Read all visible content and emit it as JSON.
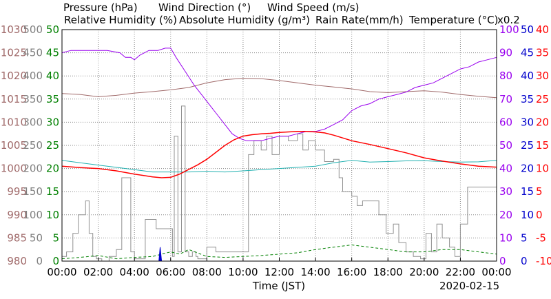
{
  "chart_data": {
    "type": "line",
    "date_label": "2020-02-15",
    "xlabel": "Time (JST)",
    "x_ticks": [
      "00:00",
      "02:00",
      "04:00",
      "06:00",
      "08:00",
      "10:00",
      "12:00",
      "14:00",
      "16:00",
      "18:00",
      "20:00",
      "22:00",
      "00:00"
    ],
    "x_range_hours": [
      0,
      24
    ],
    "grid": true,
    "legend": [
      {
        "text": "Pressure (hPa)",
        "color": "#a06a6a"
      },
      {
        "text": "Wind Direction (°)",
        "color": "#909090"
      },
      {
        "text": "Wind Speed (m/s)",
        "color": "#008000"
      },
      {
        "text": "Relative Humidity (%)",
        "color": "#9900ee"
      },
      {
        "text": "Absolute Humidity (g/m³)",
        "color": "#20b0b0"
      },
      {
        "text": "Rain Rate(mm/h)",
        "color": "#0000cc"
      },
      {
        "text": "Temperature (°C)",
        "color": "#ff0000"
      },
      {
        "text": "x0.2",
        "color": "#20b0b0"
      }
    ],
    "axes": {
      "pressure": {
        "color": "#a06a6a",
        "ticks": [
          "980",
          "985",
          "990",
          "995",
          "1000",
          "1005",
          "1010",
          "1015",
          "1020",
          "1025",
          "1030"
        ],
        "range": [
          980,
          1030
        ]
      },
      "wind_speed": {
        "color": "#008000",
        "ticks": [
          "0",
          "5",
          "10",
          "15",
          "20",
          "25",
          "30",
          "35",
          "40",
          "45",
          "50"
        ],
        "range": [
          0,
          50
        ]
      },
      "wind_direction": {
        "color": "#808080",
        "ticks": [
          "0",
          "50",
          "100",
          "150",
          "200",
          "250",
          "300",
          "350",
          "400",
          "450",
          "500"
        ],
        "range": [
          0,
          500
        ]
      },
      "humidity": {
        "color": "#9900ee",
        "ticks": [
          "0",
          "10",
          "20",
          "30",
          "40",
          "50",
          "60",
          "70",
          "80",
          "90",
          "100"
        ],
        "range": [
          0,
          100
        ]
      },
      "rain": {
        "color": "#0000cc",
        "ticks": [
          "0",
          "5",
          "10",
          "15",
          "20",
          "25",
          "30",
          "35",
          "40",
          "45",
          "50"
        ],
        "range": [
          0,
          50
        ]
      },
      "temperature": {
        "color": "#ff0000",
        "ticks": [
          "-10",
          "-5",
          "0",
          "5",
          "10",
          "15",
          "20",
          "25",
          "30",
          "35",
          "40"
        ],
        "range": [
          -10,
          40
        ]
      }
    },
    "series": [
      {
        "name": "Pressure (hPa)",
        "axis": "pressure",
        "color": "#a06a6a",
        "x": [
          0,
          1,
          2,
          3,
          4,
          5,
          6,
          7,
          8,
          9,
          10,
          11,
          12,
          13,
          14,
          15,
          16,
          17,
          18,
          19,
          20,
          21,
          22,
          23,
          24
        ],
        "values": [
          1016.2,
          1016.0,
          1015.5,
          1015.8,
          1016.3,
          1016.6,
          1017.0,
          1017.5,
          1018.5,
          1019.2,
          1019.5,
          1019.4,
          1019.0,
          1018.5,
          1018.0,
          1017.6,
          1017.2,
          1016.6,
          1016.4,
          1016.6,
          1016.8,
          1016.5,
          1016.0,
          1015.6,
          1015.3
        ]
      },
      {
        "name": "Wind Direction (°)",
        "axis": "wind_direction",
        "color": "#909090",
        "x": [
          0,
          0.25,
          0.6,
          0.9,
          1.3,
          1.5,
          1.7,
          1.9,
          2.2,
          2.6,
          3.0,
          3.3,
          3.6,
          3.8,
          4.0,
          4.3,
          4.6,
          4.9,
          5.2,
          5.5,
          5.8,
          6.0,
          6.1,
          6.2,
          6.4,
          6.5,
          6.6,
          6.8,
          7.0,
          7.2,
          7.4,
          7.5,
          7.6,
          8.0,
          8.5,
          9.0,
          9.6,
          10.0,
          10.3,
          10.6,
          11.0,
          11.3,
          11.6,
          12.0,
          12.5,
          13.0,
          13.3,
          13.6,
          14.0,
          14.5,
          15.0,
          15.3,
          15.5,
          15.8,
          16.0,
          16.3,
          16.6,
          17.0,
          17.5,
          17.9,
          18.3,
          18.6,
          19.0,
          19.4,
          19.8,
          20.1,
          20.4,
          20.7,
          21.0,
          21.4,
          21.7,
          22.0,
          22.4,
          22.8,
          23.2,
          23.6,
          24.0
        ],
        "values": [
          10,
          20,
          60,
          100,
          130,
          60,
          10,
          5,
          0,
          10,
          25,
          180,
          180,
          20,
          5,
          5,
          90,
          90,
          70,
          70,
          70,
          70,
          10,
          270,
          20,
          20,
          335,
          20,
          10,
          20,
          10,
          5,
          5,
          30,
          20,
          20,
          20,
          20,
          230,
          260,
          240,
          270,
          230,
          270,
          260,
          275,
          240,
          260,
          240,
          215,
          220,
          180,
          150,
          150,
          140,
          120,
          130,
          130,
          100,
          60,
          80,
          40,
          20,
          10,
          5,
          60,
          20,
          80,
          50,
          30,
          10,
          80,
          160,
          160,
          160,
          160,
          165
        ]
      },
      {
        "name": "Wind Speed (m/s)",
        "axis": "wind_speed",
        "color": "#008000",
        "x": [
          0,
          1,
          2,
          3,
          4,
          5,
          5.5,
          6,
          6.5,
          7,
          8,
          9,
          10,
          11,
          12,
          13,
          14,
          15,
          16,
          17,
          18,
          19,
          20,
          21,
          22,
          23,
          24
        ],
        "values": [
          0.5,
          0.8,
          1.2,
          0.5,
          0.8,
          1.0,
          1.5,
          2.0,
          1.5,
          2.5,
          1.0,
          0.8,
          1.0,
          1.2,
          1.5,
          1.8,
          2.5,
          3.0,
          3.5,
          3.0,
          2.5,
          2.0,
          2.0,
          2.5,
          2.5,
          2.0,
          1.5
        ]
      },
      {
        "name": "Relative Humidity (%)",
        "axis": "humidity",
        "color": "#9900ee",
        "x": [
          0,
          0.5,
          1.5,
          2.5,
          3.2,
          3.5,
          3.8,
          4.0,
          4.3,
          4.8,
          5.3,
          5.7,
          6.0,
          6.3,
          6.8,
          7.3,
          7.8,
          8.2,
          8.5,
          9.0,
          9.4,
          9.8,
          10.2,
          10.5,
          11.0,
          11.5,
          12.0,
          12.5,
          13.0,
          13.5,
          14.0,
          14.5,
          15.0,
          15.5,
          16.0,
          16.5,
          17.0,
          17.5,
          18.0,
          18.5,
          19.0,
          19.5,
          20.0,
          20.5,
          21.0,
          21.5,
          22.0,
          22.5,
          23.0,
          23.5,
          24.0
        ],
        "values": [
          90,
          91,
          91,
          91,
          90,
          88,
          88,
          87,
          89,
          91,
          91,
          92,
          92,
          88,
          82,
          76,
          71,
          67,
          64,
          59,
          55,
          53,
          52,
          52,
          52,
          53,
          54,
          54,
          55,
          56,
          56,
          57,
          59,
          61,
          65,
          67,
          68,
          70,
          71,
          72,
          73,
          75,
          76,
          77,
          79,
          81,
          83,
          84,
          86,
          87,
          88
        ]
      },
      {
        "name": "Absolute Humidity (g/m³)",
        "axis": "humidity",
        "color": "#20b0b0",
        "x": [
          0,
          1,
          2,
          3,
          4,
          5,
          6,
          7,
          8,
          9,
          10,
          11,
          12,
          13,
          14,
          15,
          16,
          17,
          18,
          19,
          20,
          21,
          22,
          23,
          24
        ],
        "values": [
          43.5,
          42.5,
          41.5,
          40.5,
          39.5,
          38.5,
          38.5,
          38.5,
          38.8,
          38.5,
          39.0,
          39.5,
          40.0,
          40.5,
          41.0,
          42.5,
          43.5,
          42.8,
          43.0,
          43.3,
          43.4,
          43.0,
          42.8,
          42.9,
          43.5
        ]
      },
      {
        "name": "Rain Rate(mm/h)",
        "axis": "rain",
        "color": "#0000cc",
        "x": [
          5.35,
          5.42,
          5.5
        ],
        "values": [
          0,
          3,
          0
        ]
      },
      {
        "name": "Temperature (°C)",
        "axis": "temperature",
        "color": "#ff0000",
        "x": [
          0,
          1,
          2,
          3,
          4,
          5,
          5.5,
          6,
          6.5,
          7,
          7.5,
          8,
          8.5,
          9,
          9.5,
          10,
          10.5,
          11,
          11.5,
          12,
          12.5,
          13,
          13.5,
          14,
          14.5,
          15,
          15.5,
          16,
          17,
          18,
          19,
          20,
          21,
          22,
          23,
          24
        ],
        "values": [
          10.5,
          10.2,
          10.0,
          9.5,
          8.8,
          8.2,
          8.0,
          8.1,
          8.8,
          9.8,
          10.8,
          12.0,
          13.5,
          15.0,
          16.2,
          17.0,
          17.3,
          17.5,
          17.6,
          17.8,
          17.9,
          18.0,
          18.0,
          17.9,
          17.7,
          17.2,
          16.6,
          16.0,
          15.2,
          14.3,
          13.4,
          12.3,
          11.6,
          11.0,
          10.5,
          10.3
        ]
      }
    ]
  }
}
